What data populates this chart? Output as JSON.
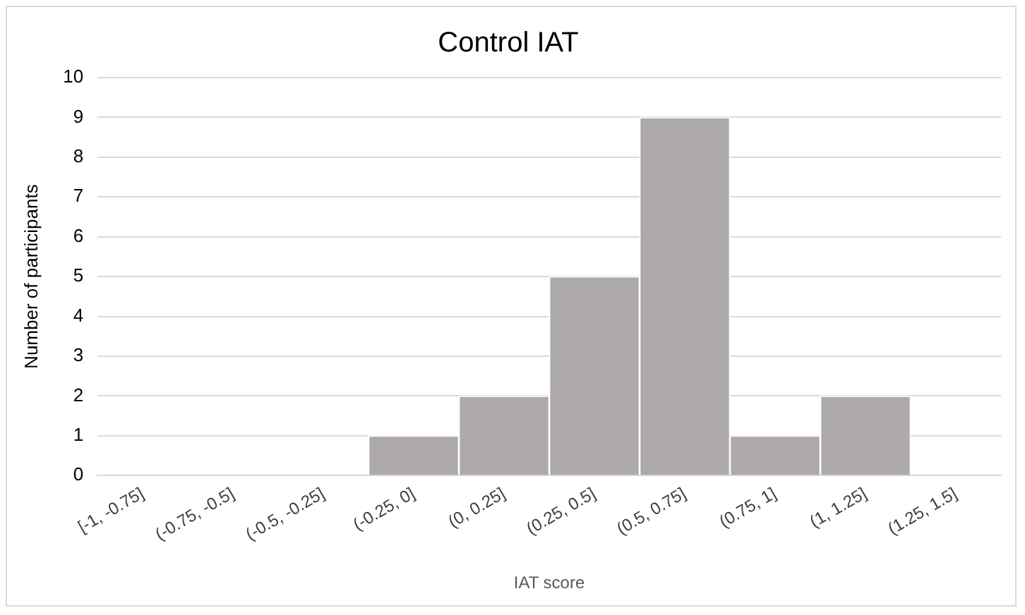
{
  "chart_data": {
    "type": "bar",
    "title": "Control IAT",
    "xlabel": "IAT score",
    "ylabel": "Number of participants",
    "categories": [
      "[-1, -0.75]",
      "(-0.75, -0.5]",
      "(-0.5, -0.25]",
      "(-0.25, 0]",
      "(0, 0.25]",
      "(0.25, 0.5]",
      "(0.5, 0.75]",
      "(0.75, 1]",
      "(1, 1.25]",
      "(1.25, 1.5]"
    ],
    "values": [
      0,
      0,
      0,
      1,
      2,
      5,
      9,
      1,
      2,
      0
    ],
    "color": "#aeaaaa",
    "ylim": [
      0,
      10
    ],
    "yticks": [
      0,
      1,
      2,
      3,
      4,
      5,
      6,
      7,
      8,
      9,
      10
    ],
    "grid": "y",
    "legend": false
  }
}
